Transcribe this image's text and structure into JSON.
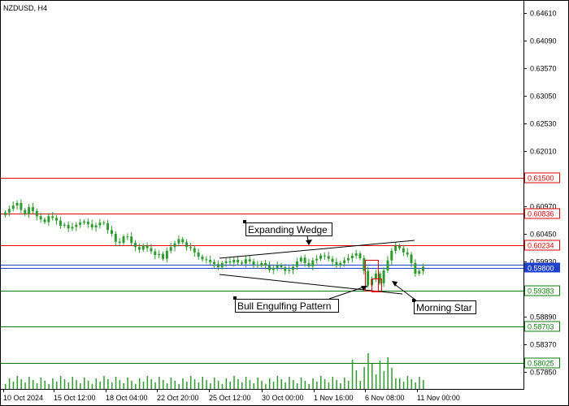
{
  "title": "NZDUSD, H4",
  "chart_data": {
    "type": "candlestick",
    "symbol": "NZDUSD",
    "timeframe": "H4",
    "ylim": [
      0.5753,
      0.6485
    ],
    "y_ticks": [
      "0.64610",
      "0.64090",
      "0.63570",
      "0.63050",
      "0.62530",
      "0.62010",
      "0.61500",
      "0.60970",
      "0.60450",
      "0.59930",
      "0.59410",
      "0.58890",
      "0.58370",
      "0.57850"
    ],
    "x_ticks": [
      "10 Oct 2024",
      "15 Oct 12:00",
      "18 Oct 04:00",
      "22 Oct 20:00",
      "25 Oct 12:00",
      "30 Oct 00:00",
      "1 Nov 16:00",
      "6 Nov 08:00",
      "11 Nov 00:00"
    ],
    "candles_close": [
      0.6085,
      0.6092,
      0.6098,
      0.6103,
      0.609,
      0.6082,
      0.6095,
      0.6088,
      0.6078,
      0.6072,
      0.6067,
      0.6078,
      0.6075,
      0.607,
      0.606,
      0.6062,
      0.6055,
      0.6058,
      0.6062,
      0.6066,
      0.6068,
      0.6063,
      0.6057,
      0.6061,
      0.6066,
      0.6065,
      0.6052,
      0.6045,
      0.603,
      0.6028,
      0.604,
      0.604,
      0.6028,
      0.602,
      0.6015,
      0.6023,
      0.6018,
      0.6012,
      0.6005,
      0.6007,
      0.5998,
      0.6013,
      0.602,
      0.6027,
      0.6035,
      0.6029,
      0.602,
      0.6018,
      0.601,
      0.6002,
      0.5997,
      0.5996,
      0.5992,
      0.5988,
      0.5982,
      0.599,
      0.5993,
      0.5991,
      0.5996,
      0.5991,
      0.5989,
      0.5997,
      0.5993,
      0.5987,
      0.5985,
      0.599,
      0.5985,
      0.5977,
      0.5981,
      0.5986,
      0.5982,
      0.5975,
      0.5977,
      0.5983,
      0.5993,
      0.6,
      0.599,
      0.5984,
      0.5995,
      0.5998,
      0.6004,
      0.6003,
      0.5998,
      0.5992,
      0.5985,
      0.599,
      0.5995,
      0.5999,
      0.6004,
      0.6008,
      0.5999,
      0.5975,
      0.5948,
      0.596,
      0.597,
      0.5952,
      0.5976,
      0.5995,
      0.6013,
      0.6022,
      0.6018,
      0.601,
      0.6006,
      0.599,
      0.597,
      0.5975,
      0.5983
    ],
    "horizontal_levels": [
      {
        "value": 0.615,
        "label": "0.61500",
        "color": "#e00000",
        "label_style": "outline"
      },
      {
        "value": 0.60836,
        "label": "0.60836",
        "color": "#e00000",
        "label_style": "outline"
      },
      {
        "value": 0.60234,
        "label": "0.60234",
        "color": "#e00000",
        "label_style": "outline"
      },
      {
        "value": 0.598,
        "label": "0.59800",
        "color": "#2040d0",
        "label_style": "filled"
      },
      {
        "value": 0.59383,
        "label": "0.59383",
        "color": "#0a7a0a",
        "label_style": "outline"
      },
      {
        "value": 0.58703,
        "label": "0.58703",
        "color": "#0a7a0a",
        "label_style": "outline"
      },
      {
        "value": 0.58025,
        "label": "0.58025",
        "color": "#0a7a0a",
        "label_style": "outline"
      }
    ],
    "annotations": [
      {
        "text": "Expanding Wedge"
      },
      {
        "text": "Bull Engulfing Pattern"
      },
      {
        "text": "Morning Star"
      }
    ],
    "volume_color": "#2e9b2e",
    "candle_color": "#2e9b2e"
  }
}
